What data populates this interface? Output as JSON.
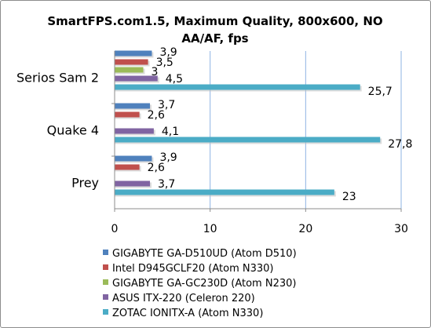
{
  "chart_data": {
    "type": "bar",
    "orientation": "horizontal",
    "title_lines": [
      "SmartFPS.com1.5, Maximum Quality, 800x600, NO",
      "AA/AF, fps"
    ],
    "categories": [
      "Serios Sam 2",
      "Quake 4",
      "Prey"
    ],
    "series": [
      {
        "name": "GIGABYTE GA-D510UD (Atom D510)",
        "color": "#4f81bd",
        "values": [
          3.9,
          3.7,
          3.9
        ],
        "labels": [
          "3,9",
          "3,7",
          "3,9"
        ]
      },
      {
        "name": "Intel D945GCLF20 (Atom N330)",
        "color": "#c0504d",
        "values": [
          3.5,
          2.6,
          2.6
        ],
        "labels": [
          "3,5",
          "2,6",
          "2,6"
        ]
      },
      {
        "name": "GIGABYTE GA-GC230D (Atom N230)",
        "color": "#9bbb59",
        "values": [
          3,
          null,
          null
        ],
        "labels": [
          "3",
          null,
          null
        ]
      },
      {
        "name": "ASUS ITX-220 (Celeron 220)",
        "color": "#8064a2",
        "values": [
          4.5,
          4.1,
          3.7
        ],
        "labels": [
          "4,5",
          "4,1",
          "3,7"
        ]
      },
      {
        "name": "ZOTAC IONITX-A (Atom N330)",
        "color": "#4bacc6",
        "values": [
          25.7,
          27.8,
          23
        ],
        "labels": [
          "25,7",
          "27,8",
          "23"
        ]
      }
    ],
    "xlim": [
      0,
      30
    ],
    "xticks": [
      0,
      10,
      20,
      30
    ],
    "xtick_labels": [
      "0",
      "10",
      "20",
      "30"
    ],
    "grid": "vertical",
    "legend_position": "bottom"
  }
}
